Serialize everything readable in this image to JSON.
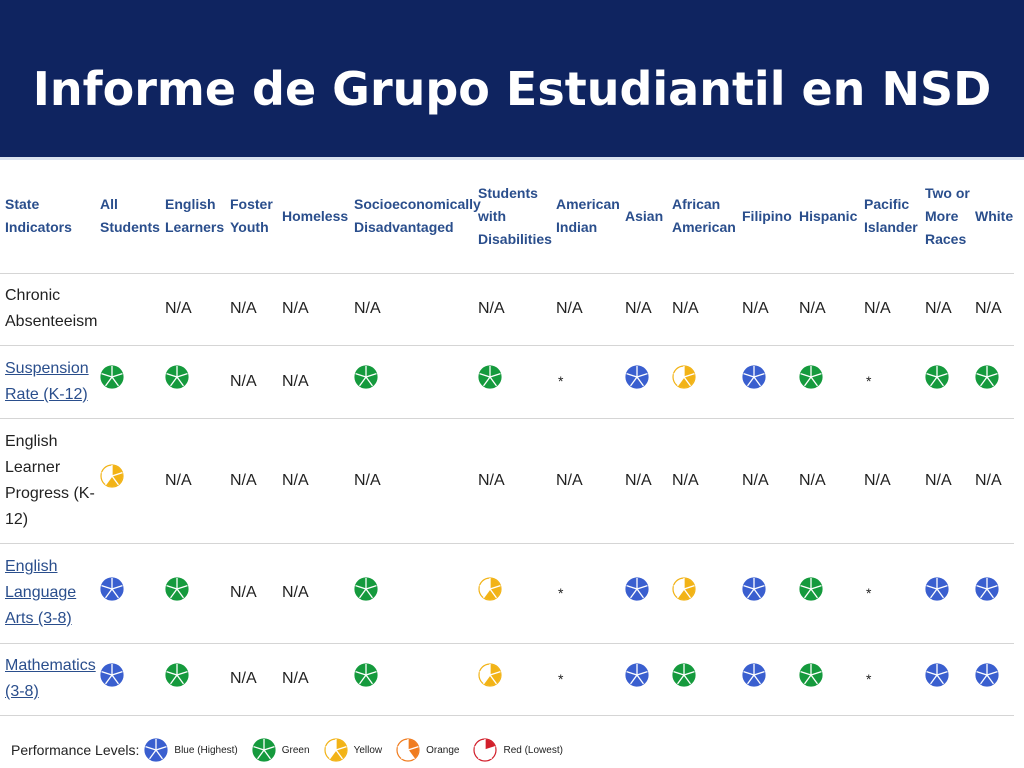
{
  "title": "Informe de Grupo Estudiantil en NSD",
  "colors": {
    "blue": "#3a5fcf",
    "green": "#159a3d",
    "yellow": "#f2b316",
    "orange": "#f07c1f",
    "red": "#d21f2b"
  },
  "table": {
    "headers": [
      "State Indicators",
      "All Students",
      "English Learners",
      "Foster Youth",
      "Homeless",
      "Socioeconomically Disadvantaged",
      "Students with Disabilities",
      "American Indian",
      "Asian",
      "African American",
      "Filipino",
      "Hispanic",
      "Pacific Islander",
      "Two or More Races",
      "White"
    ],
    "rows": [
      {
        "label": "Chronic Absenteeism",
        "link": false,
        "cells": [
          "",
          "N/A",
          "N/A",
          "N/A",
          "N/A",
          "N/A",
          "N/A",
          "N/A",
          "N/A",
          "N/A",
          "N/A",
          "N/A",
          "N/A",
          "N/A"
        ]
      },
      {
        "label": "Suspension Rate (K-12)",
        "link": true,
        "cells": [
          "green",
          "green",
          "N/A",
          "N/A",
          "green",
          "green",
          "*",
          "blue",
          "yellow",
          "blue",
          "green",
          "*",
          "green",
          "green"
        ]
      },
      {
        "label": "English Learner Progress (K-12)",
        "link": false,
        "cells": [
          "yellow",
          "N/A",
          "N/A",
          "N/A",
          "N/A",
          "N/A",
          "N/A",
          "N/A",
          "N/A",
          "N/A",
          "N/A",
          "N/A",
          "N/A",
          "N/A"
        ]
      },
      {
        "label": "English Language Arts (3-8)",
        "link": true,
        "cells": [
          "blue",
          "green",
          "N/A",
          "N/A",
          "green",
          "yellow",
          "*",
          "blue",
          "yellow",
          "blue",
          "green",
          "*",
          "blue",
          "blue"
        ]
      },
      {
        "label": "Mathematics (3-8)",
        "link": true,
        "cells": [
          "blue",
          "green",
          "N/A",
          "N/A",
          "green",
          "yellow",
          "*",
          "blue",
          "green",
          "blue",
          "green",
          "*",
          "blue",
          "blue"
        ]
      }
    ]
  },
  "legend": {
    "label": "Performance Levels:",
    "items": [
      {
        "level": "blue",
        "text": "Blue (Highest)"
      },
      {
        "level": "green",
        "text": "Green"
      },
      {
        "level": "yellow",
        "text": "Yellow"
      },
      {
        "level": "orange",
        "text": "Orange"
      },
      {
        "level": "red",
        "text": "Red (Lowest)"
      }
    ]
  }
}
